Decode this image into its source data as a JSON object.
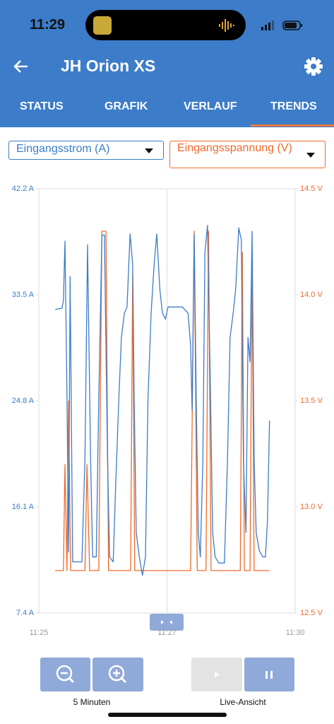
{
  "status_bar": {
    "time": "11:29"
  },
  "header": {
    "title": "JH Orion XS"
  },
  "tabs": [
    "STATUS",
    "GRAFIK",
    "VERLAUF",
    "TRENDS"
  ],
  "chart_data": {
    "type": "line",
    "xlim": [
      25,
      30
    ],
    "xticks": [
      {
        "value": 25,
        "label": "11:25"
      },
      {
        "value": 27.5,
        "label": "11:27"
      },
      {
        "value": 30,
        "label": "11:30"
      }
    ],
    "ylim": [
      7.4,
      42.2
    ],
    "yticks": [
      {
        "value": 7.4,
        "label": "7.4 A"
      },
      {
        "value": 16.1,
        "label": "16.1 A"
      },
      {
        "value": 24.8,
        "label": "24.8 A"
      },
      {
        "value": 33.5,
        "label": "33.5 A"
      },
      {
        "value": 42.2,
        "label": "42.2 A"
      }
    ],
    "y2lim": [
      12.5,
      14.5
    ],
    "y2ticks": [
      {
        "value": 12.5,
        "label": "12.5 V"
      },
      {
        "value": 13.0,
        "label": "13.0 V"
      },
      {
        "value": 13.5,
        "label": "13.5 V"
      },
      {
        "value": 14.0,
        "label": "14.0 V"
      },
      {
        "value": 14.5,
        "label": "14.5 V"
      }
    ],
    "grid": true,
    "series": [
      {
        "name": "Eingangsstrom (A)",
        "color": "#3c7cc9",
        "x": [
          25.32,
          25.45,
          25.48,
          25.51,
          25.55,
          25.58,
          25.61,
          25.66,
          25.84,
          25.9,
          25.95,
          26.01,
          26.05,
          26.12,
          26.17,
          26.23,
          26.28,
          26.34,
          26.38,
          26.45,
          26.5,
          26.56,
          26.61,
          26.67,
          26.72,
          26.78,
          26.83,
          26.86,
          26.9,
          26.96,
          27.02,
          27.08,
          27.13,
          27.19,
          27.25,
          27.3,
          27.36,
          27.41,
          27.47,
          27.52,
          27.58,
          27.69,
          27.8,
          27.91,
          27.96,
          27.99,
          28.03,
          28.07,
          28.11,
          28.15,
          28.2,
          28.24,
          28.29,
          28.35,
          28.39,
          28.44,
          28.51,
          28.62,
          28.68,
          28.73,
          28.79,
          28.84,
          28.9,
          28.95,
          28.99,
          29.04,
          29.08,
          29.12,
          29.16,
          29.2,
          29.24,
          29.3,
          29.37,
          29.42,
          29.46,
          29.5
        ],
        "values": [
          32.3,
          32.4,
          33,
          37.9,
          25,
          12.4,
          35,
          11.6,
          11.6,
          20,
          37.6,
          20,
          12,
          12,
          25,
          38.4,
          38.4,
          20,
          12,
          11.6,
          18,
          25,
          30,
          32,
          32.5,
          38.5,
          36,
          25,
          14,
          12,
          10.5,
          12,
          25,
          32,
          36,
          38.5,
          34,
          32,
          31.5,
          32.5,
          32.5,
          32.5,
          32.5,
          32,
          29.4,
          24,
          38.5,
          25,
          14,
          12,
          20,
          37,
          39.2,
          25,
          14,
          12,
          11.5,
          11.5,
          20,
          30,
          32,
          34,
          39,
          38,
          20,
          14,
          30,
          28,
          38.7,
          20,
          14,
          12.5,
          12,
          12,
          15,
          23.2
        ]
      },
      {
        "name": "Eingangsspannung (V)",
        "color": "#f06a2a",
        "axis": "y2",
        "x": [
          25.32,
          25.48,
          25.51,
          25.55,
          25.58,
          25.62,
          25.9,
          25.94,
          25.99,
          26.17,
          26.23,
          26.31,
          26.36,
          26.79,
          26.83,
          26.87,
          27.96,
          28.03,
          28.09,
          28.26,
          28.31,
          28.36,
          28.93,
          28.97,
          29.01,
          29.12,
          29.16,
          29.2,
          29.5
        ],
        "values": [
          12.7,
          12.7,
          13.2,
          12.7,
          13.5,
          12.7,
          12.7,
          13.2,
          12.7,
          12.7,
          14.3,
          14.3,
          12.7,
          12.7,
          14.1,
          12.7,
          12.7,
          14.3,
          12.7,
          12.7,
          14.3,
          12.7,
          12.7,
          14.2,
          12.7,
          12.7,
          14.2,
          12.7,
          12.7
        ]
      }
    ]
  },
  "controls": {
    "zoom_label": "5 Minuten",
    "live_label": "Live-Ansicht"
  }
}
